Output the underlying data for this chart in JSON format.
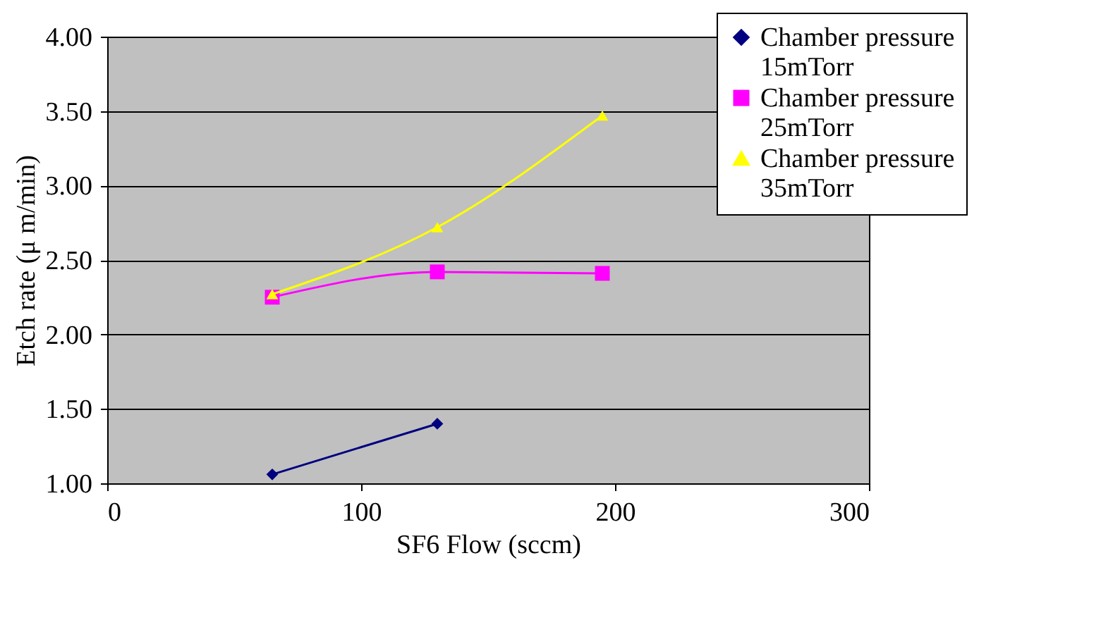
{
  "chart_data": {
    "type": "line",
    "xlabel": "SF6 Flow (sccm)",
    "ylabel": "Etch rate (μ m/min)",
    "xlim": [
      0,
      300
    ],
    "xticks": [
      0,
      100,
      200,
      300
    ],
    "ylim": [
      1,
      4
    ],
    "yticks": [
      {
        "value": 1,
        "label": "1.00"
      },
      {
        "value": 1.5,
        "label": "1.50"
      },
      {
        "value": 2,
        "label": "2.00"
      },
      {
        "value": 2.5,
        "label": "2.50"
      },
      {
        "value": 3,
        "label": "3.00"
      },
      {
        "value": 3.5,
        "label": "3.50"
      },
      {
        "value": 4,
        "label": "4.00"
      }
    ],
    "grid": "y",
    "legend": "top right",
    "series": [
      {
        "name": "Chamber pressure 15mTorr",
        "color": "#000080",
        "marker": "diamond",
        "x": [
          65,
          130
        ],
        "values": [
          1.06,
          1.4
        ]
      },
      {
        "name": "Chamber pressure 25mTorr",
        "color": "#ff00ff",
        "marker": "square",
        "x": [
          65,
          130,
          195
        ],
        "values": [
          2.25,
          2.42,
          2.41
        ]
      },
      {
        "name": "Chamber pressure 35mTorr",
        "color": "#ffff00",
        "marker": "triangle",
        "x": [
          65,
          130,
          195
        ],
        "values": [
          2.27,
          2.72,
          3.47
        ]
      }
    ]
  }
}
